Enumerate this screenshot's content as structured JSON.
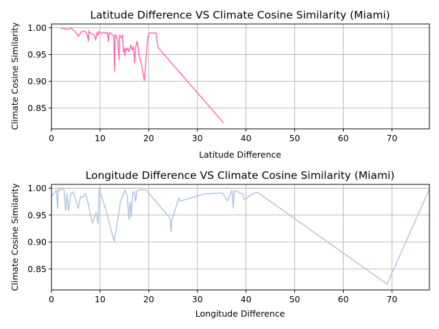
{
  "chart_data": [
    {
      "type": "line",
      "title": "Latitude Difference VS Climate Cosine Similarity (Miami)",
      "xlabel": "Latitude Difference",
      "ylabel": "Climate Cosine Similarity",
      "xlim": [
        0,
        77.7
      ],
      "ylim": [
        0.811,
        1.007
      ],
      "xticks": [
        0,
        10,
        20,
        30,
        40,
        50,
        60,
        70
      ],
      "yticks": [
        0.85,
        0.9,
        0.95,
        1.0
      ],
      "grid": true,
      "color": "#ff69b4",
      "x": [
        1.9,
        2.3,
        3.2,
        4.1,
        4.5,
        5.0,
        5.6,
        6.1,
        6.8,
        7.3,
        7.6,
        7.7,
        7.8,
        8.0,
        8.3,
        8.8,
        9.1,
        9.4,
        9.6,
        9.8,
        10.1,
        10.4,
        10.8,
        11.2,
        11.5,
        11.7,
        11.8,
        12.0,
        12.4,
        12.8,
        13.0,
        13.1,
        13.3,
        13.6,
        13.9,
        14.0,
        14.2,
        14.4,
        14.6,
        14.8,
        15.0,
        15.1,
        15.3,
        15.5,
        15.7,
        15.9,
        16.1,
        16.3,
        16.6,
        16.9,
        17.1,
        17.3,
        17.6,
        17.8,
        18.0,
        18.6,
        19.1,
        19.3,
        19.7,
        20.0,
        21.5,
        21.9,
        35.4
      ],
      "values": [
        0.998,
        0.999,
        0.997,
        0.999,
        0.996,
        0.991,
        0.984,
        0.992,
        0.994,
        0.989,
        0.975,
        0.995,
        0.991,
        0.99,
        0.989,
        0.986,
        0.977,
        0.992,
        0.986,
        0.993,
        0.991,
        0.989,
        0.992,
        0.989,
        0.991,
        0.974,
        0.988,
        0.991,
        0.988,
        0.985,
        0.919,
        0.987,
        0.985,
        0.978,
        0.94,
        0.986,
        0.983,
        0.981,
        0.987,
        0.955,
        0.96,
        0.947,
        0.962,
        0.958,
        0.962,
        0.955,
        0.96,
        0.968,
        0.958,
        0.965,
        0.934,
        0.962,
        0.975,
        0.965,
        0.95,
        0.928,
        0.901,
        0.925,
        0.975,
        0.99,
        0.99,
        0.963,
        0.822
      ]
    },
    {
      "type": "line",
      "title": "Longitude Difference VS Climate Cosine Similarity (Miami)",
      "xlabel": "Longitude Difference",
      "ylabel": "Climate Cosine Similarity",
      "xlim": [
        0,
        77.7
      ],
      "ylim": [
        0.811,
        1.007
      ],
      "xticks": [
        0,
        10,
        20,
        30,
        40,
        50,
        60,
        70
      ],
      "yticks": [
        0.85,
        0.9,
        0.95,
        1.0
      ],
      "grid": true,
      "color": "#b0c4de",
      "x": [
        0.1,
        0.5,
        1.0,
        1.3,
        1.4,
        1.6,
        2.2,
        2.6,
        2.9,
        3.2,
        3.5,
        4.0,
        4.5,
        5.0,
        5.5,
        6.0,
        6.5,
        7.0,
        7.6,
        8.4,
        9.2,
        9.6,
        9.8,
        11.1,
        12.9,
        14.2,
        15.1,
        15.6,
        15.9,
        16.2,
        16.4,
        16.7,
        17.0,
        17.3,
        17.6,
        18.3,
        19.5,
        24.4,
        24.6,
        24.8,
        26.2,
        26.5,
        30.2,
        31.3,
        32.8,
        35.2,
        36.2,
        37.1,
        37.4,
        37.6,
        38.2,
        38.8,
        39.3,
        39.6,
        40.2,
        41.1,
        41.8,
        42.4,
        69.0,
        77.7
      ],
      "values": [
        0.985,
        0.99,
        0.996,
        0.962,
        0.998,
        0.995,
        0.999,
        0.996,
        0.958,
        0.99,
        0.958,
        0.99,
        0.993,
        0.978,
        0.962,
        0.985,
        0.983,
        0.99,
        0.97,
        0.935,
        0.955,
        0.935,
        0.999,
        0.962,
        0.901,
        0.975,
        0.997,
        0.985,
        0.942,
        0.975,
        0.946,
        0.99,
        0.994,
        0.975,
        0.995,
        0.997,
        0.996,
        0.944,
        0.92,
        0.942,
        0.982,
        0.976,
        0.986,
        0.989,
        0.99,
        0.991,
        0.976,
        0.996,
        0.963,
        0.995,
        0.994,
        0.99,
        0.99,
        0.979,
        0.982,
        0.988,
        0.991,
        0.992,
        0.822,
        0.998
      ]
    }
  ]
}
